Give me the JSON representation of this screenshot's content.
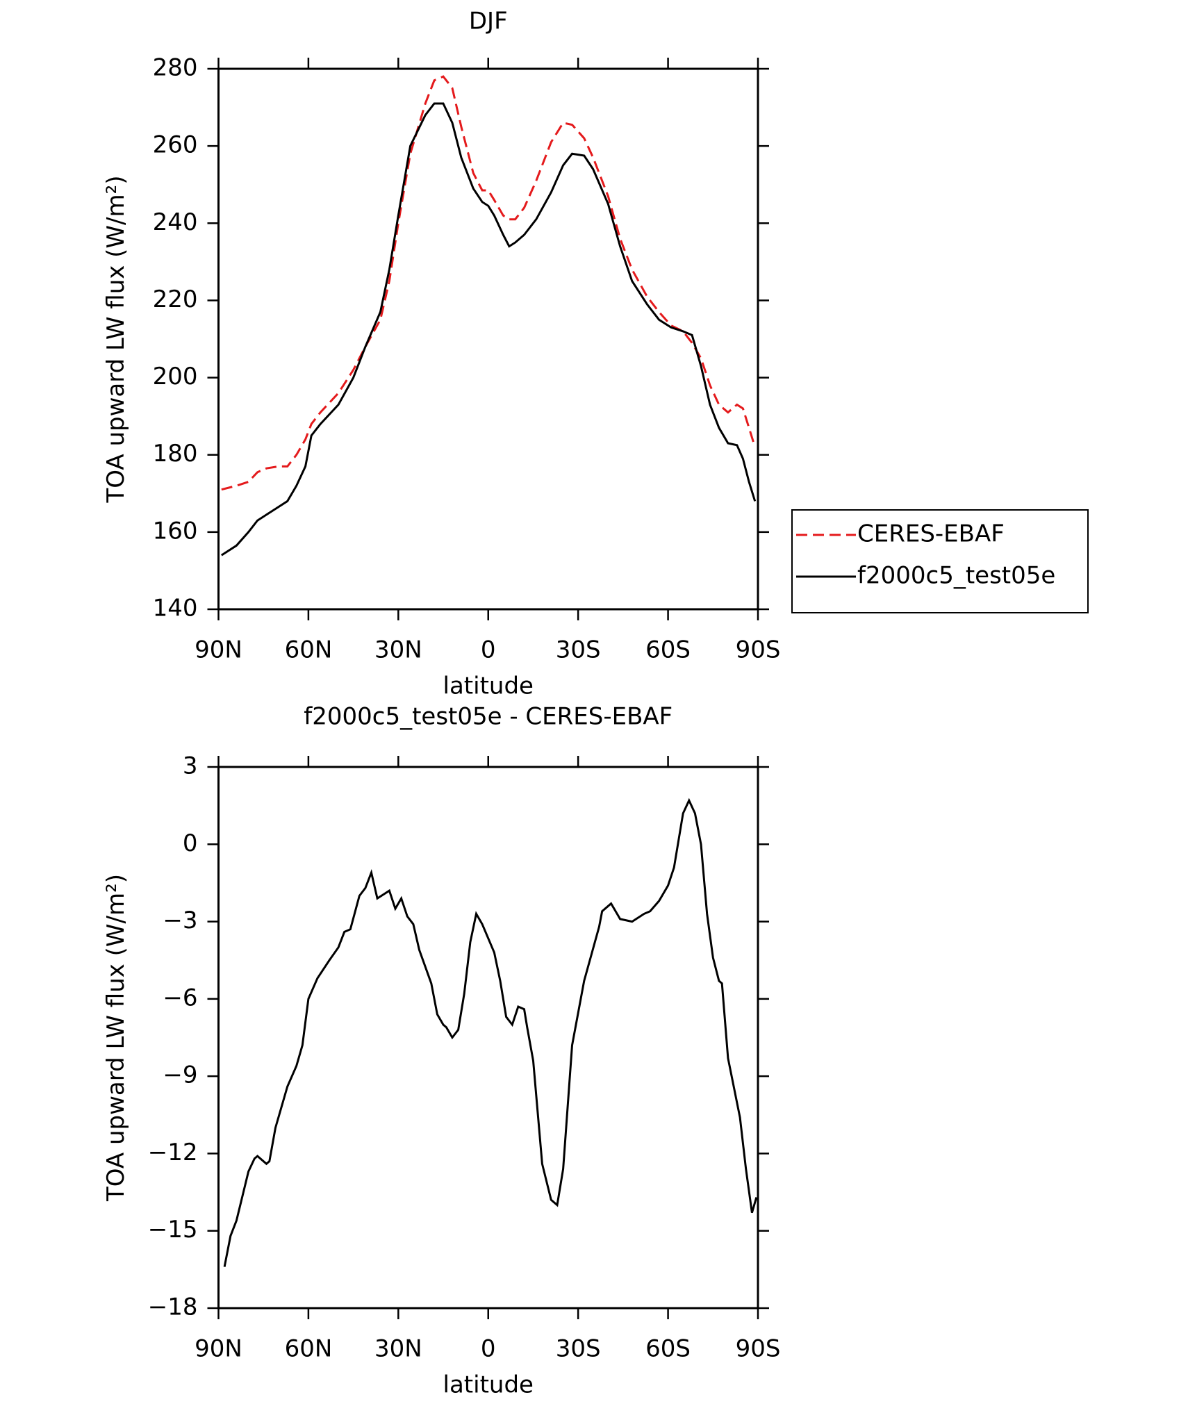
{
  "chart_data": [
    {
      "type": "line",
      "title": "DJF",
      "xlabel": "latitude",
      "ylabel": "TOA upward LW flux (W/m²)",
      "xlim": [
        90,
        -90
      ],
      "ylim": [
        140,
        280
      ],
      "xticks": [
        {
          "value": 90,
          "label": "90N"
        },
        {
          "value": 60,
          "label": "60N"
        },
        {
          "value": 30,
          "label": "30N"
        },
        0,
        {
          "value": -30,
          "label": "30S"
        },
        {
          "value": -60,
          "label": "60S"
        },
        {
          "value": -90,
          "label": "90S"
        }
      ],
      "yticks": [
        140,
        160,
        180,
        200,
        220,
        240,
        260,
        280
      ],
      "legend": "right",
      "x": [
        89,
        84,
        80,
        77,
        74,
        70,
        67,
        64,
        61,
        59,
        56,
        50,
        45,
        41,
        36,
        33,
        30,
        26,
        21,
        18,
        15,
        12,
        9,
        5,
        2,
        0,
        -2,
        -5,
        -7,
        -9,
        -12,
        -16,
        -21,
        -25,
        -28,
        -32,
        -35,
        -40,
        -44,
        -48,
        -53,
        -57,
        -61,
        -65,
        -68,
        -71,
        -74,
        -77,
        -80,
        -83,
        -85,
        -87,
        -89
      ],
      "series": [
        {
          "name": "CERES-EBAF",
          "color": "#e41a1c",
          "style": "dashed",
          "values": [
            171,
            172,
            173,
            175.5,
            176.5,
            177,
            177,
            180,
            184,
            188,
            191,
            196,
            202,
            208,
            215,
            225,
            240,
            258,
            271,
            277,
            278,
            275,
            265,
            253,
            248.5,
            248.5,
            246,
            242,
            241,
            241,
            244,
            251,
            261,
            266,
            265.5,
            262,
            257,
            247,
            236,
            228,
            221,
            217,
            213.5,
            212,
            209,
            205,
            198,
            193,
            191,
            193,
            192,
            187,
            182
          ]
        },
        {
          "name": "f2000c5_test05e",
          "color": "#000000",
          "style": "solid",
          "values": [
            154,
            156.5,
            160,
            163,
            164.5,
            166.5,
            168,
            172,
            177,
            185,
            188,
            193,
            200,
            208,
            217,
            228,
            242,
            260,
            268,
            271,
            271,
            266,
            257,
            249,
            245.5,
            244.5,
            242,
            237,
            234,
            235,
            237,
            241,
            248,
            255,
            258,
            257.5,
            254,
            245,
            234,
            225,
            219,
            215,
            213,
            212,
            211,
            203,
            193,
            187,
            183,
            182.5,
            179,
            173,
            168
          ]
        }
      ]
    },
    {
      "type": "line",
      "title": "f2000c5_test05e - CERES-EBAF",
      "xlabel": "latitude",
      "ylabel": "TOA upward LW flux (W/m²)",
      "xlim": [
        90,
        -90
      ],
      "ylim": [
        -18,
        3
      ],
      "xticks": [
        {
          "value": 90,
          "label": "90N"
        },
        {
          "value": 60,
          "label": "60N"
        },
        {
          "value": 30,
          "label": "30N"
        },
        0,
        {
          "value": -30,
          "label": "30S"
        },
        {
          "value": -60,
          "label": "60S"
        },
        {
          "value": -90,
          "label": "90S"
        }
      ],
      "yticks": [
        {
          "value": -18,
          "label": "−18"
        },
        {
          "value": -15,
          "label": "−15"
        },
        {
          "value": -12,
          "label": "−12"
        },
        {
          "value": -9,
          "label": "−9"
        },
        {
          "value": -6,
          "label": "−6"
        },
        {
          "value": -3,
          "label": "−3"
        },
        0,
        3
      ],
      "color": "#000000",
      "x": [
        88,
        86,
        84,
        80,
        78,
        77,
        74,
        73,
        71,
        67,
        64,
        62,
        60,
        57,
        53,
        50,
        48,
        46,
        43,
        41,
        39,
        37,
        33,
        31,
        29,
        27,
        25,
        23,
        19,
        17,
        15,
        14,
        12,
        10,
        8,
        6,
        4,
        2,
        -2,
        -4,
        -6,
        -8,
        -10,
        -12,
        -13,
        -15,
        -18,
        -21,
        -23,
        -25,
        -28,
        -32,
        -37,
        -38,
        -41,
        -44,
        -48,
        -52,
        -54,
        -57,
        -60,
        -62,
        -65,
        -67,
        -69,
        -71,
        -73,
        -75,
        -77,
        -78,
        -80,
        -84,
        -86,
        -88,
        -89.5
      ],
      "values": [
        -16.4,
        -15.2,
        -14.6,
        -12.7,
        -12.2,
        -12.1,
        -12.4,
        -12.3,
        -11.0,
        -9.4,
        -8.6,
        -7.8,
        -6.0,
        -5.2,
        -4.5,
        -4.0,
        -3.4,
        -3.3,
        -2.0,
        -1.7,
        -1.1,
        -2.1,
        -1.8,
        -2.5,
        -2.1,
        -2.8,
        -3.1,
        -4.1,
        -5.4,
        -6.6,
        -7.0,
        -7.1,
        -7.5,
        -7.2,
        -5.8,
        -3.8,
        -2.7,
        -3.1,
        -4.2,
        -5.3,
        -6.7,
        -7.0,
        -6.3,
        -6.4,
        -7.1,
        -8.4,
        -12.4,
        -13.8,
        -14.0,
        -12.6,
        -7.8,
        -5.3,
        -3.2,
        -2.6,
        -2.3,
        -2.9,
        -3.0,
        -2.7,
        -2.6,
        -2.2,
        -1.6,
        -0.9,
        1.2,
        1.7,
        1.2,
        0.0,
        -2.7,
        -4.4,
        -5.3,
        -5.4,
        -8.3,
        -10.6,
        -12.6,
        -14.3,
        -13.7
      ]
    }
  ]
}
